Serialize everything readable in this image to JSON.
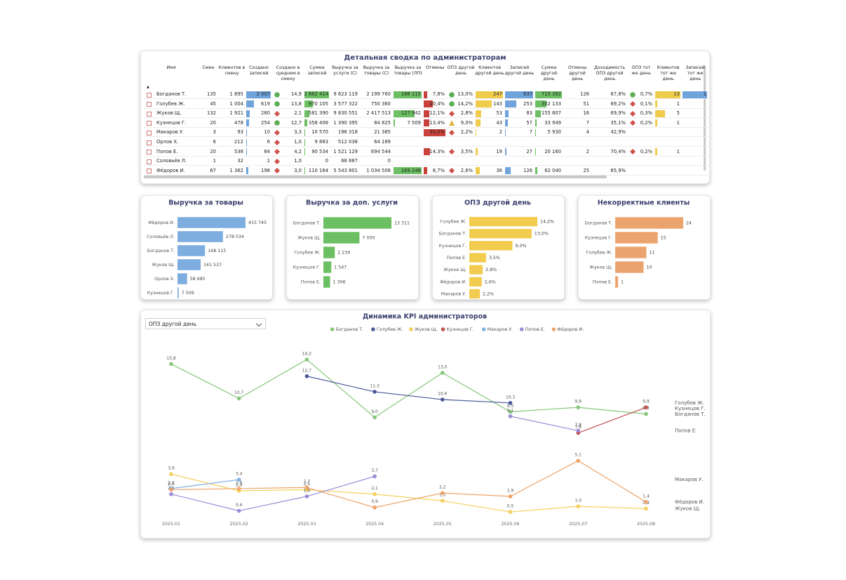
{
  "table": {
    "title": "Детальная сводка по администраторам",
    "columns": [
      "Имя",
      "Смен",
      "Клиентов в смену",
      "Создано записей",
      "Создано в среднем в смену",
      "Сумма записей",
      "Выручка за услуги (С)",
      "Выручка за товары (С)",
      "Выручка за товары (ЛП)",
      "Отмены",
      "ОПЗ другой день",
      "Клиентов другой день",
      "Записей другой день",
      "Сумма другой день",
      "Отмены другой день",
      "Доходимость ОПЗ другой день",
      "ОПЗ тот же день",
      "Клиентов тот же день",
      "Записей тот же день"
    ],
    "rows": [
      [
        "Богданов Т.",
        "135",
        "1 895",
        "2 007",
        {
          "text": "14,9",
          "icon": "circle"
        },
        "2 862 414",
        "9 623 119",
        "2 199 760",
        "168 115",
        "7,8%",
        {
          "text": "13,0%",
          "icon": "circle"
        },
        "247",
        "637",
        "715 392",
        "126",
        "67,8%",
        {
          "text": "0,7%",
          "icon": "circle"
        },
        "13",
        "1"
      ],
      [
        "Голубев Ж.",
        "45",
        "1 004",
        "619",
        {
          "text": "13,8",
          "icon": "circle"
        },
        "970 105",
        "3 577 322",
        "750 360",
        null,
        "20,4%",
        {
          "text": "14,2%",
          "icon": "circle"
        },
        "143",
        "253",
        "302 133",
        "51",
        "69,2%",
        {
          "text": "0,1%",
          "icon": "diamond"
        },
        "1",
        null
      ],
      [
        "Жуков Щ.",
        "132",
        "1 921",
        "280",
        {
          "text": "2,1",
          "icon": "diamond"
        },
        "581 390",
        "9 830 551",
        "2 417 513",
        "127 942",
        "12,1%",
        {
          "text": "2,8%",
          "icon": "diamond"
        },
        "53",
        "83",
        "155 807",
        "16",
        "69,9%",
        {
          "text": "0,3%",
          "icon": "diamond"
        },
        "5",
        null
      ],
      [
        "Кузнецов Г.",
        "20",
        "478",
        "254",
        {
          "text": "12,7",
          "icon": "circle"
        },
        "358 406",
        "1 390 395",
        "84 825",
        "7 509",
        "13,4%",
        {
          "text": "9,0%",
          "icon": "triangle"
        },
        "43",
        "57",
        "33 949",
        "7",
        "35,1%",
        {
          "text": "0,2%",
          "icon": "diamond"
        },
        "1",
        null
      ],
      [
        "Макаров У.",
        "3",
        "93",
        "10",
        {
          "text": "3,3",
          "icon": "diamond"
        },
        "10 570",
        "196 318",
        "21 385",
        null,
        "50,0%",
        {
          "text": "2,2%",
          "icon": "diamond"
        },
        "2",
        "7",
        "5 930",
        "4",
        "42,9%",
        null,
        null,
        null
      ],
      [
        "Орлов Х.",
        "6",
        "212",
        "6",
        {
          "text": "1,0",
          "icon": "diamond"
        },
        "9 883",
        "512 038",
        "64 189",
        null,
        null,
        null,
        null,
        null,
        null,
        null,
        null,
        null,
        null,
        null
      ],
      [
        "Попов Е.",
        "20",
        "538",
        "84",
        {
          "text": "4,2",
          "icon": "diamond"
        },
        "90 534",
        "1 521 129",
        "694 544",
        null,
        "14,3%",
        {
          "text": "3,5%",
          "icon": "diamond"
        },
        "19",
        "27",
        "20 160",
        "2",
        "70,4%",
        {
          "text": "0,2%",
          "icon": "diamond"
        },
        "1",
        null
      ],
      [
        "Соловьёв Л.",
        "1",
        "32",
        "1",
        {
          "text": "1,0",
          "icon": "diamond"
        },
        "0",
        "68 887",
        "0",
        null,
        null,
        null,
        null,
        null,
        null,
        null,
        null,
        null,
        null,
        null
      ],
      [
        "Фёдоров И.",
        "67",
        "1 362",
        "198",
        {
          "text": "3,0",
          "icon": "diamond"
        },
        "110 164",
        "5 543 801",
        "1 034 506",
        "169 248",
        "8,7%",
        {
          "text": "2,6%",
          "icon": "diamond"
        },
        "36",
        "126",
        "62 040",
        "25",
        "65,9%",
        null,
        null,
        null
      ]
    ],
    "bar_colors": {
      "3": "#6fa3dc",
      "5": "#6cbf62",
      "8": "#6cbf62",
      "9": "#c9413b",
      "11": "#f0cc4c",
      "12": "#6fa3dc",
      "13": "#6cbf62",
      "17": "#f0cc4c",
      "18": "#6fa3dc"
    },
    "icon_colors": {
      "circle": "#5cae55",
      "diamond": "#d0504a",
      "triangle": "#e0b440"
    }
  },
  "chart_data": [
    {
      "type": "bar",
      "title": "Выручка за товары",
      "categories": [
        "Фёдоров И.",
        "Соловьёв Л.",
        "Богданов Т.",
        "Жуков Щ.",
        "Орлов Х.",
        "Кузнецов Г."
      ],
      "values": [
        415745,
        278034,
        168115,
        141537,
        58685,
        7509
      ],
      "value_labels": [
        "415 745",
        "278 034",
        "168 115",
        "141 537",
        "58 685",
        "7 509"
      ],
      "color": "#7eaee0"
    },
    {
      "type": "bar",
      "title": "Выручка за доп. услуги",
      "categories": [
        "Богданов Т.",
        "Жуков Щ.",
        "Голубев Ж.",
        "Кузнецов Г.",
        "Попов Е."
      ],
      "values": [
        13311,
        7050,
        2234,
        1547,
        1306
      ],
      "value_labels": [
        "13 311",
        "7 050",
        "2 234",
        "1 547",
        "1 306"
      ],
      "color": "#6cbf62"
    },
    {
      "type": "bar",
      "title": "ОПЗ другой день",
      "categories": [
        "Голубев Ж.",
        "Богданов Т.",
        "Кузнецов Г.",
        "Попов Е.",
        "Жуков Щ.",
        "Фёдоров И.",
        "Макаров У."
      ],
      "values": [
        14.2,
        13.0,
        9.0,
        3.5,
        2.8,
        2.6,
        2.2
      ],
      "value_labels": [
        "14,2%",
        "13,0%",
        "9,0%",
        "3,5%",
        "2,8%",
        "2,6%",
        "2,2%"
      ],
      "color": "#f2cc4e"
    },
    {
      "type": "bar",
      "title": "Некорректные клиенты",
      "categories": [
        "Богданов Т.",
        "Кузнецов Г.",
        "Голубев Ж.",
        "Жуков Щ.",
        "Попов Е."
      ],
      "values": [
        24,
        15,
        11,
        10,
        1
      ],
      "color": "#eca46e"
    },
    {
      "type": "line",
      "title": "Динамика KPI администраторов",
      "selector": "ОПЗ другой день",
      "categories": [
        "2025.01",
        "2025.02",
        "2025.03",
        "2025.04",
        "2025.05",
        "2025.06",
        "2025.07",
        "2025.08"
      ],
      "series": [
        {
          "name": "Богданов Т.",
          "color": "#86c77a",
          "values": [
            13.8,
            10.7,
            14.2,
            9.0,
            13.0,
            9.5,
            9.9,
            9.3
          ],
          "value_labels": [
            "13,8",
            "10,7",
            "14,2",
            "9,0",
            "13,0",
            "9,5",
            "9,9",
            "9,3"
          ]
        },
        {
          "name": "Голубев Ж.",
          "color": "#4a5899",
          "values": [
            null,
            null,
            12.7,
            11.3,
            10.6,
            10.3,
            null,
            null
          ],
          "value_labels": [
            null,
            null,
            "12,7",
            "11,3",
            "10,6",
            "10,3",
            null,
            null
          ]
        },
        {
          "name": "Жуков Щ.",
          "color": "#f2d05a",
          "values": [
            3.9,
            2.4,
            2.5,
            2.1,
            1.5,
            0.5,
            1.0,
            0.8
          ],
          "value_labels": [
            "3,9",
            "2,4",
            "2,5",
            "2,1",
            "1,5",
            "0,5",
            "1,0",
            "0,8"
          ]
        },
        {
          "name": "Кузнецов Г.",
          "color": "#c0504d",
          "values": [
            null,
            null,
            null,
            null,
            null,
            null,
            7.6,
            9.9
          ],
          "value_labels": [
            null,
            null,
            null,
            null,
            null,
            null,
            "7,6",
            "9,9"
          ]
        },
        {
          "name": "Макаров У.",
          "color": "#7fb2e5",
          "values": [
            2.6,
            3.4,
            null,
            null,
            null,
            null,
            null,
            null
          ],
          "value_labels": [
            "2,6",
            "3,4",
            null,
            null,
            null,
            null,
            null,
            null
          ]
        },
        {
          "name": "Попов Е.",
          "color": "#9b8bd6",
          "values": [
            2.1,
            0.6,
            1.9,
            3.7,
            null,
            9.1,
            7.8,
            null
          ],
          "value_labels": [
            "2,1",
            "0,6",
            "1,9",
            "3,7",
            null,
            "9,1",
            "7,8",
            null
          ]
        },
        {
          "name": "Фёдоров И.",
          "color": "#eea46b",
          "values": [
            2.5,
            2.6,
            2.7,
            0.9,
            2.2,
            1.9,
            5.1,
            1.4
          ],
          "value_labels": [
            "2,5",
            "2,6",
            "2,7",
            "0,9",
            "2,2",
            "1,9",
            "5,1",
            "1,4"
          ]
        }
      ]
    }
  ]
}
